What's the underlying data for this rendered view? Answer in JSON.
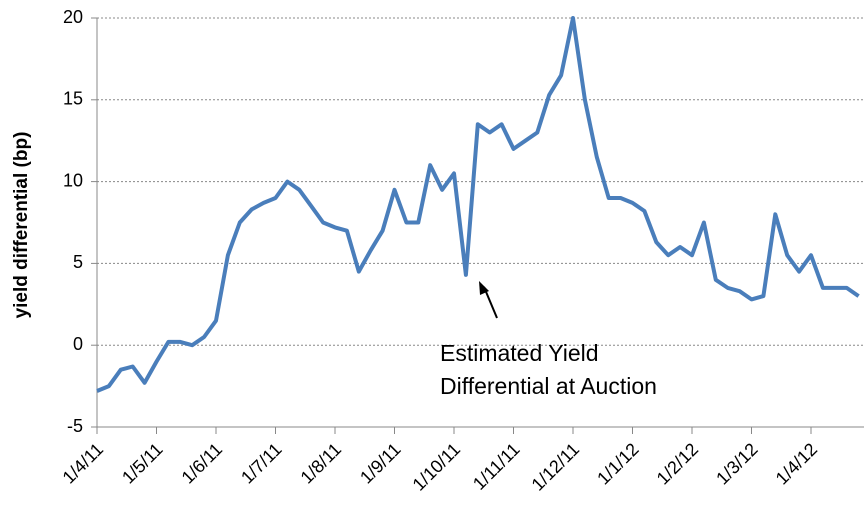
{
  "chart_data": {
    "type": "line",
    "ylabel": "yield differential (bp)",
    "categories": [
      "1/4/11",
      null,
      null,
      null,
      null,
      "1/5/11",
      null,
      null,
      null,
      null,
      "1/6/11",
      null,
      null,
      null,
      null,
      "1/7/11",
      null,
      null,
      null,
      null,
      "1/8/11",
      null,
      null,
      null,
      null,
      "1/9/11",
      null,
      null,
      null,
      null,
      "1/10/11",
      null,
      null,
      null,
      null,
      "1/11/11",
      null,
      null,
      null,
      null,
      "1/12/11",
      null,
      null,
      null,
      null,
      "1/1/12",
      null,
      null,
      null,
      null,
      "1/2/12",
      null,
      null,
      null,
      null,
      "1/3/12",
      null,
      null,
      null,
      null,
      "1/4/12",
      null,
      null,
      null,
      null
    ],
    "values": [
      -2.8,
      -2.5,
      -1.5,
      -1.3,
      -2.3,
      -1.0,
      0.2,
      0.2,
      0.0,
      0.5,
      1.5,
      5.5,
      7.5,
      8.3,
      8.7,
      9.0,
      10.0,
      9.5,
      8.5,
      7.5,
      7.2,
      7.0,
      4.5,
      5.8,
      7.0,
      9.5,
      7.5,
      7.5,
      11.0,
      9.5,
      10.5,
      4.3,
      13.5,
      13.0,
      13.5,
      12.0,
      12.5,
      13.0,
      15.3,
      16.5,
      20.0,
      15.0,
      11.5,
      9.0,
      9.0,
      8.7,
      8.2,
      6.3,
      5.5,
      6.0,
      5.5,
      7.5,
      4.0,
      3.5,
      3.3,
      2.8,
      3.0,
      8.0,
      5.5,
      4.5,
      5.5,
      3.5,
      3.5,
      3.5,
      3.0
    ],
    "color": "#4a7ebb",
    "ylim": [
      -5,
      20
    ],
    "yticks": [
      -5,
      0,
      5,
      10,
      15,
      20
    ],
    "grid": true,
    "annotation": [
      "Estimated Yield",
      "Differential at Auction"
    ]
  }
}
